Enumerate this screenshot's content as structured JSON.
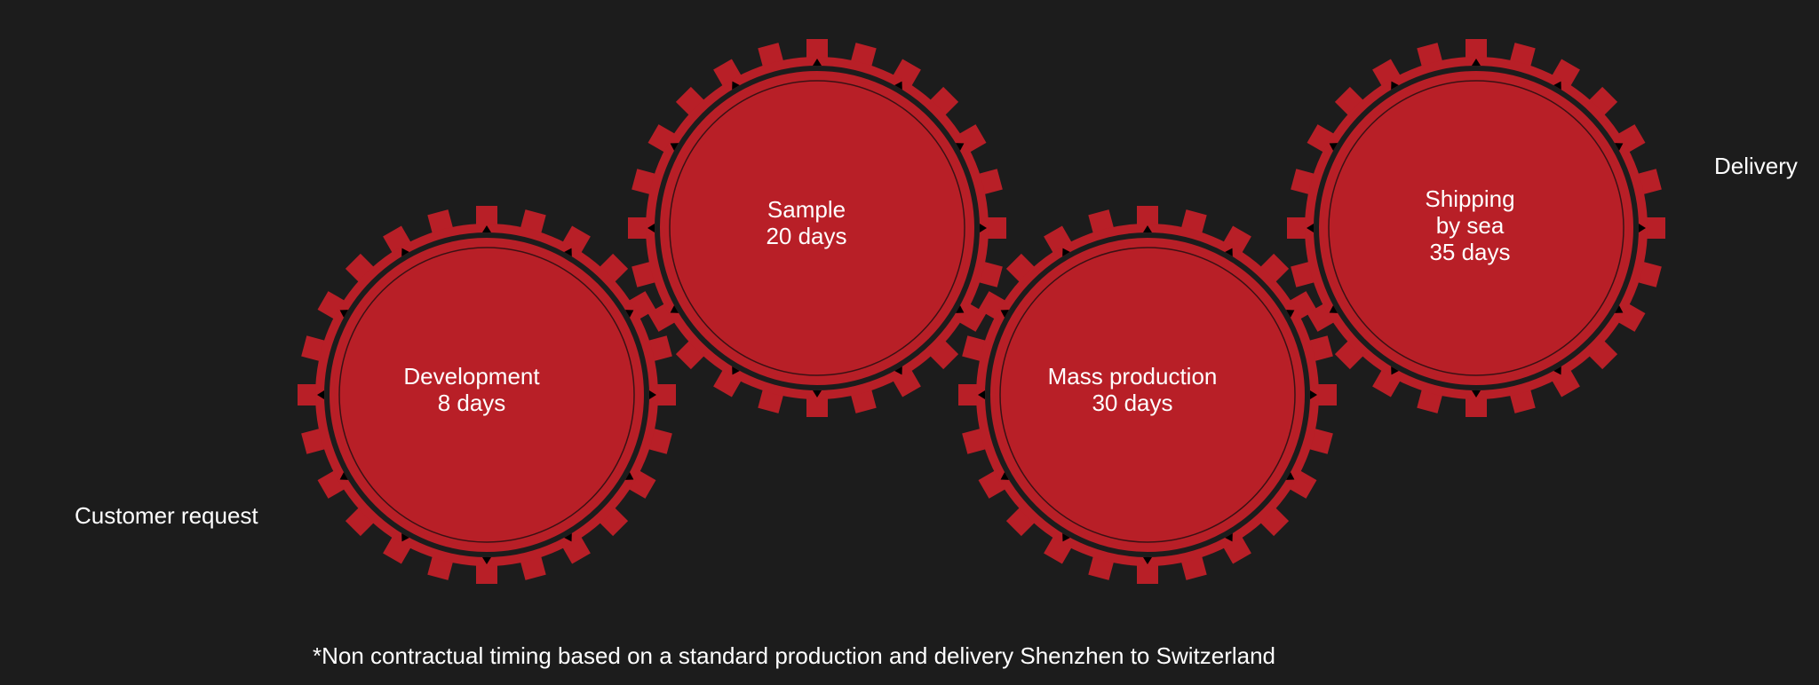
{
  "gears": [
    {
      "id": "development",
      "lines": [
        "Development",
        "8 days"
      ]
    },
    {
      "id": "sample",
      "lines": [
        "Sample",
        "20 days"
      ]
    },
    {
      "id": "mass-production",
      "lines": [
        "Mass production",
        "30 days"
      ]
    },
    {
      "id": "shipping",
      "lines": [
        "Shipping",
        "by sea",
        "35 days"
      ]
    }
  ],
  "start_label": "Customer request",
  "end_label": "Delivery",
  "footnote": "*Non contractual timing based on a standard production and delivery Shenzhen to Switzerland",
  "colors": {
    "background": "#1c1c1c",
    "gear_red": "#b81f27",
    "text": "#ffffff"
  }
}
